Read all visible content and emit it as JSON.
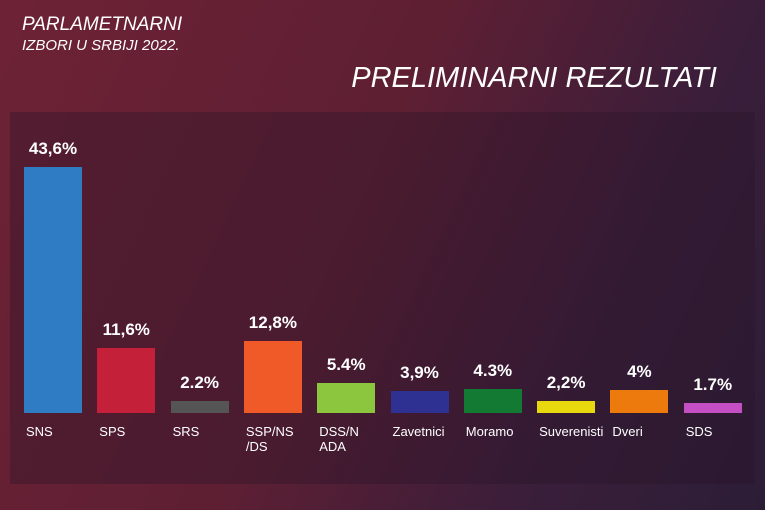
{
  "chart_data": {
    "type": "bar",
    "title": "PRELIMINARNI REZULTATI",
    "header": [
      "PARLAMETNARNI",
      "IZBORI U SRBIJI 2022."
    ],
    "categories": [
      "SNS",
      "SPS",
      "SRS",
      "SSP/NS/DS",
      "DSS/NADA",
      "Zavetnici",
      "Moramo",
      "Suverenisti",
      "Dveri",
      "SDS"
    ],
    "values": [
      43.6,
      11.6,
      2.2,
      12.8,
      5.4,
      3.9,
      4.3,
      2.2,
      4,
      1.7
    ],
    "value_labels": [
      "43,6%",
      "11,6%",
      "2.2%",
      "12,8%",
      "5.4%",
      "3,9%",
      "4.3%",
      "2,2%",
      "4%",
      "1.7%"
    ],
    "colors": [
      "#2f7bc4",
      "#c4203a",
      "#555555",
      "#f05a28",
      "#8cc63f",
      "#2e3192",
      "#137a34",
      "#e8d80e",
      "#ec7a0c",
      "#c44fc4"
    ]
  }
}
